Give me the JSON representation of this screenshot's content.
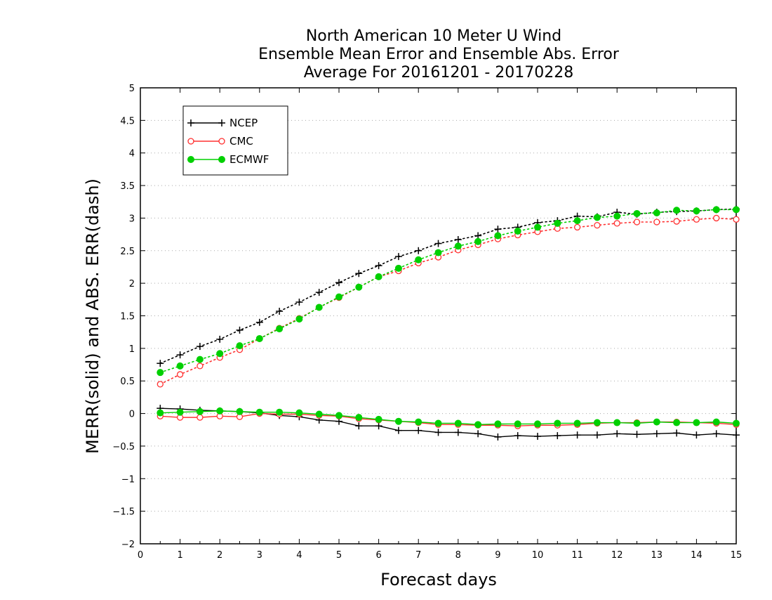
{
  "chart_data": {
    "type": "line",
    "title": [
      "North American 10 Meter U Wind",
      "Ensemble Mean Error and Ensemble Abs. Error",
      "Average For 20161201 - 20170228"
    ],
    "xlabel": "Forecast days",
    "ylabel": "MERR(solid) and ABS. ERR(dash)",
    "xlim": [
      0,
      15
    ],
    "ylim": [
      -2,
      5
    ],
    "xticks": [
      "0",
      "1",
      "2",
      "3",
      "4",
      "5",
      "6",
      "7",
      "8",
      "9",
      "10",
      "11",
      "12",
      "13",
      "14",
      "15"
    ],
    "yticks": [
      "5",
      "4.5",
      "4",
      "3.5",
      "3",
      "2.5",
      "2",
      "1.5",
      "1",
      "0.5",
      "0",
      "−0.5",
      "−1",
      "−1.5",
      "−2"
    ],
    "grid": true,
    "legend_position": "top-left",
    "x": [
      0.5,
      1,
      1.5,
      2,
      2.5,
      3,
      3.5,
      4,
      4.5,
      5,
      5.5,
      6,
      6.5,
      7,
      7.5,
      8,
      8.5,
      9,
      9.5,
      10,
      10.5,
      11,
      11.5,
      12,
      12.5,
      13,
      13.5,
      14,
      14.5,
      15
    ],
    "series": [
      {
        "name": "NCEP",
        "color": "#000000",
        "marker": "plus",
        "merr": [
          0.08,
          0.07,
          0.05,
          0.04,
          0.03,
          0.01,
          -0.03,
          -0.05,
          -0.1,
          -0.12,
          -0.19,
          -0.19,
          -0.26,
          -0.26,
          -0.29,
          -0.29,
          -0.31,
          -0.36,
          -0.34,
          -0.35,
          -0.34,
          -0.33,
          -0.33,
          -0.31,
          -0.32,
          -0.31,
          -0.3,
          -0.33,
          -0.31,
          -0.33
        ],
        "abs_err": [
          0.77,
          0.9,
          1.03,
          1.14,
          1.28,
          1.4,
          1.57,
          1.71,
          1.86,
          2.01,
          2.15,
          2.27,
          2.41,
          2.5,
          2.61,
          2.67,
          2.73,
          2.83,
          2.86,
          2.93,
          2.96,
          3.03,
          3.02,
          3.09,
          3.06,
          3.09,
          3.1,
          3.11,
          3.13,
          3.14
        ]
      },
      {
        "name": "CMC",
        "color": "#ff3030",
        "marker": "open-circle",
        "merr": [
          -0.04,
          -0.06,
          -0.06,
          -0.04,
          -0.05,
          0.0,
          -0.01,
          -0.01,
          -0.03,
          -0.04,
          -0.08,
          -0.1,
          -0.12,
          -0.14,
          -0.17,
          -0.17,
          -0.18,
          -0.18,
          -0.19,
          -0.18,
          -0.18,
          -0.17,
          -0.15,
          -0.14,
          -0.14,
          -0.13,
          -0.13,
          -0.14,
          -0.15,
          -0.17
        ],
        "abs_err": [
          0.45,
          0.6,
          0.73,
          0.86,
          0.98,
          1.15,
          1.31,
          1.46,
          1.63,
          1.78,
          1.94,
          2.1,
          2.19,
          2.31,
          2.4,
          2.51,
          2.59,
          2.68,
          2.74,
          2.79,
          2.84,
          2.86,
          2.89,
          2.92,
          2.94,
          2.94,
          2.95,
          2.98,
          3.0,
          2.98
        ]
      },
      {
        "name": "ECMWF",
        "color": "#00d000",
        "marker": "filled-circle",
        "merr": [
          0.01,
          0.02,
          0.03,
          0.04,
          0.03,
          0.02,
          0.02,
          0.01,
          -0.01,
          -0.03,
          -0.06,
          -0.09,
          -0.12,
          -0.13,
          -0.15,
          -0.15,
          -0.17,
          -0.16,
          -0.16,
          -0.16,
          -0.15,
          -0.15,
          -0.14,
          -0.14,
          -0.15,
          -0.13,
          -0.14,
          -0.14,
          -0.13,
          -0.15
        ],
        "abs_err": [
          0.63,
          0.73,
          0.83,
          0.92,
          1.04,
          1.15,
          1.3,
          1.45,
          1.63,
          1.79,
          1.94,
          2.1,
          2.23,
          2.36,
          2.47,
          2.57,
          2.64,
          2.73,
          2.8,
          2.86,
          2.92,
          2.96,
          3.01,
          3.03,
          3.07,
          3.08,
          3.12,
          3.11,
          3.13,
          3.13
        ]
      }
    ]
  }
}
